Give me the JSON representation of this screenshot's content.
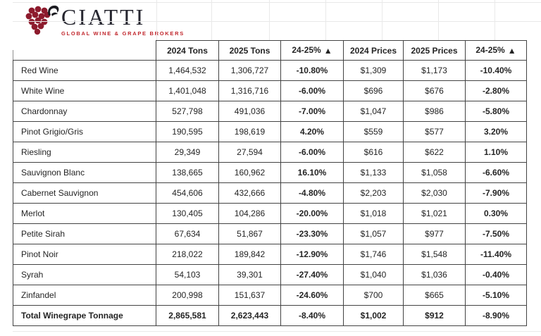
{
  "logo": {
    "brand": "CIATTI",
    "tagline": "GLOBAL WINE & GRAPE BROKERS"
  },
  "icons": {
    "change_arrow": "▲",
    "grape_cluster": "grape-cluster-icon"
  },
  "colors": {
    "brand_text": "#26262f",
    "brand_red": "#c1272d",
    "grape_red": "#8d1b2d",
    "table_border": "#434343",
    "text": "#242424",
    "faint_grid": "#e9e9e9"
  },
  "chart_data": {
    "type": "table",
    "title": "",
    "columns": [
      "",
      "2024 Tons",
      "2025 Tons",
      "24-25%",
      "2024 Prices",
      "2025 Prices",
      "24-25%"
    ],
    "rows": [
      [
        "Red Wine",
        "1,464,532",
        "1,306,727",
        "-10.80%",
        "$1,309",
        "$1,173",
        "-10.40%"
      ],
      [
        "White Wine",
        "1,401,048",
        "1,316,716",
        "-6.00%",
        "$696",
        "$676",
        "-2.80%"
      ],
      [
        "Chardonnay",
        "527,798",
        "491,036",
        "-7.00%",
        "$1,047",
        "$986",
        "-5.80%"
      ],
      [
        "Pinot Grigio/Gris",
        "190,595",
        "198,619",
        "4.20%",
        "$559",
        "$577",
        "3.20%"
      ],
      [
        "Riesling",
        "29,349",
        "27,594",
        "-6.00%",
        "$616",
        "$622",
        "1.10%"
      ],
      [
        "Sauvignon Blanc",
        "138,665",
        "160,962",
        "16.10%",
        "$1,133",
        "$1,058",
        "-6.60%"
      ],
      [
        "Cabernet Sauvignon",
        "454,606",
        "432,666",
        "-4.80%",
        "$2,203",
        "$2,030",
        "-7.90%"
      ],
      [
        "Merlot",
        "130,405",
        "104,286",
        "-20.00%",
        "$1,018",
        "$1,021",
        "0.30%"
      ],
      [
        "Petite Sirah",
        "67,634",
        "51,867",
        "-23.30%",
        "$1,057",
        "$977",
        "-7.50%"
      ],
      [
        "Pinot Noir",
        "218,022",
        "189,842",
        "-12.90%",
        "$1,746",
        "$1,548",
        "-11.40%"
      ],
      [
        "Syrah",
        "54,103",
        "39,301",
        "-27.40%",
        "$1,040",
        "$1,036",
        "-0.40%"
      ],
      [
        "Zinfandel",
        "200,998",
        "151,637",
        "-24.60%",
        "$700",
        "$665",
        "-5.10%"
      ]
    ],
    "total_row": [
      "Total Winegrape Tonnage",
      "2,865,581",
      "2,623,443",
      "-8.40%",
      "$1,002",
      "$912",
      "-8.90%"
    ]
  }
}
